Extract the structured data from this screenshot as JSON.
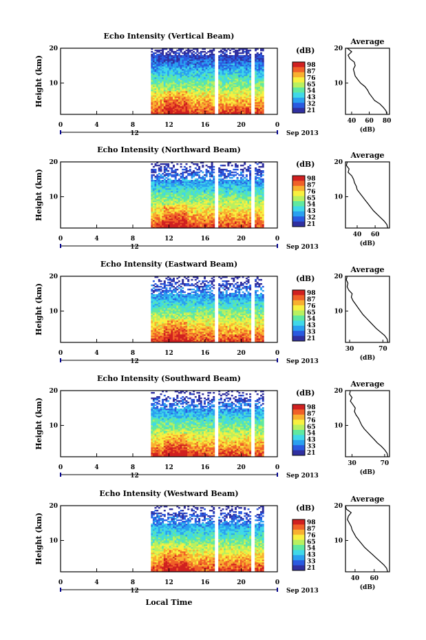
{
  "figure": {
    "xlabel": "Local Time",
    "date_label": "Sep 2013",
    "day_label": "12",
    "colorbar_unit": "(dB)",
    "average_title": "Average",
    "average_xlabel": "(dB)",
    "ylabel": "Height (km)"
  },
  "colors": {
    "colormap": [
      "#3030a0",
      "#2a5ae0",
      "#2aa0f0",
      "#40d8e8",
      "#60e8a0",
      "#b8f060",
      "#f8f040",
      "#f8b030",
      "#f06028",
      "#d02020"
    ],
    "gap": "#ffffff",
    "profile_line": "#000000"
  },
  "chart_data": [
    {
      "type": "heatmap",
      "title": "Echo Intensity (Vertical Beam)",
      "xlabel": "Local Time",
      "ylabel": "Height (km)",
      "xlim": [
        0,
        24
      ],
      "ylim": [
        1,
        20
      ],
      "xticks": [
        "0",
        "4",
        "8",
        "12",
        "16",
        "20",
        "0"
      ],
      "yticks": [
        "10",
        "20"
      ],
      "data_range_hours": [
        10,
        22.5
      ],
      "missing_hours": [
        [
          17.1,
          17.4
        ],
        [
          21.1,
          21.4
        ]
      ],
      "colorbar": {
        "unit": "(dB)",
        "ticks": [
          "98",
          "87",
          "76",
          "65",
          "54",
          "43",
          "32",
          "21"
        ]
      },
      "average": {
        "title": "Average",
        "xlabel": "(dB)",
        "xticks": [
          "40",
          "60",
          "80"
        ],
        "xlim": [
          33,
          83
        ],
        "height_km": [
          1,
          2,
          3,
          4,
          5,
          6,
          7,
          8,
          9,
          10,
          11,
          12,
          13,
          14,
          15,
          16,
          17,
          18,
          19,
          20
        ],
        "avg_db": [
          80,
          79,
          76,
          72,
          66,
          63,
          60,
          58,
          55,
          50,
          47,
          44,
          43,
          42,
          44,
          43,
          38,
          36,
          40,
          35
        ]
      }
    },
    {
      "type": "heatmap",
      "title": "Echo Intensity (Northward Beam)",
      "xlabel": "Local Time",
      "ylabel": "Height (km)",
      "xlim": [
        0,
        24
      ],
      "ylim": [
        1,
        20
      ],
      "xticks": [
        "0",
        "4",
        "8",
        "12",
        "16",
        "20",
        "0"
      ],
      "yticks": [
        "10",
        "20"
      ],
      "data_range_hours": [
        10,
        22.5
      ],
      "missing_hours": [
        [
          17.1,
          17.4
        ],
        [
          21.1,
          21.4
        ]
      ],
      "colorbar": {
        "unit": "(dB)",
        "ticks": [
          "98",
          "87",
          "76",
          "65",
          "54",
          "43",
          "32",
          "21"
        ]
      },
      "average": {
        "title": "Average",
        "xlabel": "(dB)",
        "xticks": [
          "40",
          "60"
        ],
        "xlim": [
          27,
          76
        ],
        "height_km": [
          1,
          2,
          3,
          4,
          5,
          6,
          7,
          8,
          9,
          10,
          11,
          12,
          13,
          14,
          15,
          16,
          17,
          18,
          19,
          20
        ],
        "avg_db": [
          74,
          73,
          70,
          66,
          62,
          58,
          55,
          52,
          49,
          46,
          43,
          40,
          39,
          37,
          36,
          34,
          30,
          31,
          28,
          29
        ]
      }
    },
    {
      "type": "heatmap",
      "title": "Echo Intensity (Eastward Beam)",
      "xlabel": "Local Time",
      "ylabel": "Height (km)",
      "xlim": [
        0,
        24
      ],
      "ylim": [
        1,
        20
      ],
      "xticks": [
        "0",
        "4",
        "8",
        "12",
        "16",
        "20",
        "0"
      ],
      "yticks": [
        "10",
        "20"
      ],
      "data_range_hours": [
        10,
        22.5
      ],
      "missing_hours": [
        [
          17.1,
          17.4
        ],
        [
          21.1,
          21.4
        ]
      ],
      "colorbar": {
        "unit": "(dB)",
        "ticks": [
          "98",
          "87",
          "76",
          "65",
          "54",
          "43",
          "33",
          "21"
        ]
      },
      "average": {
        "title": "Average",
        "xlabel": "(dB)",
        "xticks": [
          "30",
          "70"
        ],
        "xlim": [
          25,
          78
        ],
        "height_km": [
          1,
          2,
          3,
          4,
          5,
          6,
          7,
          8,
          9,
          10,
          11,
          12,
          13,
          14,
          15,
          16,
          17,
          18,
          19,
          20
        ],
        "avg_db": [
          76,
          75,
          72,
          67,
          62,
          58,
          54,
          50,
          46,
          43,
          40,
          37,
          34,
          32,
          33,
          29,
          27,
          28,
          26,
          27
        ]
      }
    },
    {
      "type": "heatmap",
      "title": "Echo Intensity (Southward Beam)",
      "xlabel": "Local Time",
      "ylabel": "Height (km)",
      "xlim": [
        0,
        24
      ],
      "ylim": [
        1,
        20
      ],
      "xticks": [
        "0",
        "4",
        "8",
        "12",
        "16",
        "20",
        "0"
      ],
      "yticks": [
        "10",
        "20"
      ],
      "data_range_hours": [
        10,
        22.5
      ],
      "missing_hours": [
        [
          17.1,
          17.4
        ],
        [
          21.1,
          21.4
        ]
      ],
      "colorbar": {
        "unit": "(dB)",
        "ticks": [
          "98",
          "87",
          "76",
          "65",
          "54",
          "43",
          "33",
          "21"
        ]
      },
      "average": {
        "title": "Average",
        "xlabel": "(dB)",
        "xticks": [
          "30",
          "70"
        ],
        "xlim": [
          22,
          76
        ],
        "height_km": [
          1,
          2,
          3,
          4,
          5,
          6,
          7,
          8,
          9,
          10,
          11,
          12,
          13,
          14,
          15,
          16,
          17,
          18,
          19,
          20
        ],
        "avg_db": [
          74,
          73,
          70,
          66,
          61,
          57,
          53,
          49,
          45,
          42,
          40,
          38,
          35,
          33,
          34,
          31,
          28,
          30,
          27,
          28
        ]
      }
    },
    {
      "type": "heatmap",
      "title": "Echo Intensity (Westward Beam)",
      "xlabel": "Local Time",
      "ylabel": "Height (km)",
      "xlim": [
        0,
        24
      ],
      "ylim": [
        1,
        20
      ],
      "xticks": [
        "0",
        "4",
        "8",
        "12",
        "16",
        "20",
        "0"
      ],
      "yticks": [
        "10",
        "20"
      ],
      "data_range_hours": [
        10,
        22.5
      ],
      "missing_hours": [
        [
          17.1,
          17.4
        ],
        [
          21.1,
          21.4
        ]
      ],
      "colorbar": {
        "unit": "(dB)",
        "ticks": [
          "98",
          "87",
          "76",
          "65",
          "54",
          "43",
          "33",
          "21"
        ]
      },
      "average": {
        "title": "Average",
        "xlabel": "(dB)",
        "xticks": [
          "40",
          "60"
        ],
        "xlim": [
          30,
          76
        ],
        "height_km": [
          1,
          2,
          3,
          4,
          5,
          6,
          7,
          8,
          9,
          10,
          11,
          12,
          13,
          14,
          15,
          16,
          17,
          18,
          19,
          20
        ],
        "avg_db": [
          74,
          73,
          70,
          66,
          62,
          58,
          54,
          50,
          47,
          44,
          41,
          39,
          37,
          36,
          34,
          32,
          33,
          36,
          31,
          30
        ]
      }
    }
  ]
}
